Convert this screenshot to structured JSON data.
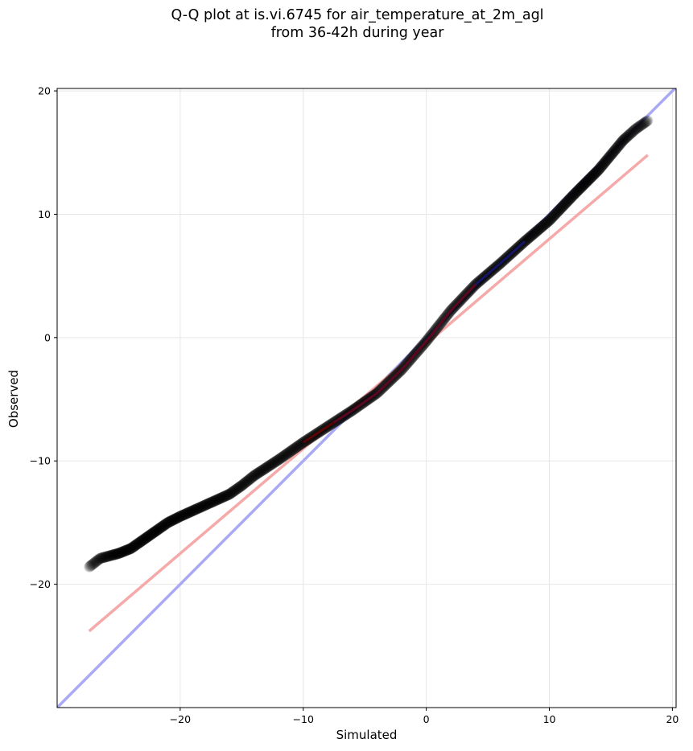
{
  "chart_data": {
    "type": "scatter",
    "title_line1": "Q-Q plot at is.vi.6745 for air_temperature_at_2m_agl",
    "title_line2": "from 36-42h during year",
    "xlabel": "Simulated",
    "ylabel": "Observed",
    "xlim": [
      -30,
      20.3
    ],
    "ylim": [
      -30,
      20.2
    ],
    "xticks": [
      -20,
      -10,
      0,
      10,
      20
    ],
    "yticks": [
      -20,
      -10,
      0,
      10,
      20
    ],
    "xtick_labels": [
      "−20",
      "−10",
      "0",
      "10",
      "20"
    ],
    "ytick_labels": [
      "−20",
      "−10",
      "0",
      "10",
      "20"
    ],
    "grid": true,
    "quantile_curve": {
      "x": [
        -27.4,
        -26.5,
        -25,
        -24,
        -23,
        -22,
        -21,
        -20,
        -18,
        -16,
        -15,
        -14,
        -12,
        -10,
        -8,
        -6,
        -4,
        -2,
        0,
        2,
        4,
        6,
        8,
        10,
        12,
        14,
        15,
        16,
        17,
        18
      ],
      "y": [
        -18.6,
        -17.9,
        -17.5,
        -17.1,
        -16.4,
        -15.7,
        -15.0,
        -14.5,
        -13.6,
        -12.7,
        -12.0,
        -11.2,
        -9.9,
        -8.5,
        -7.2,
        -5.9,
        -4.5,
        -2.6,
        -0.3,
        2.2,
        4.3,
        6.0,
        7.8,
        9.5,
        11.6,
        13.6,
        14.8,
        16.0,
        16.9,
        17.6
      ]
    },
    "reference_line": {
      "name": "y = x",
      "color": "#a9a9f5",
      "x": [
        -30,
        20.3
      ],
      "y": [
        -30,
        20.3
      ]
    },
    "fit_line": {
      "color": "#f5a9a9",
      "x": [
        -27.4,
        18
      ],
      "y": [
        -23.8,
        14.8
      ]
    },
    "colors": {
      "points": "#000000",
      "faint_points": "#8c8c8c",
      "axis": "#000000",
      "grid": "#e6e6e6"
    }
  }
}
